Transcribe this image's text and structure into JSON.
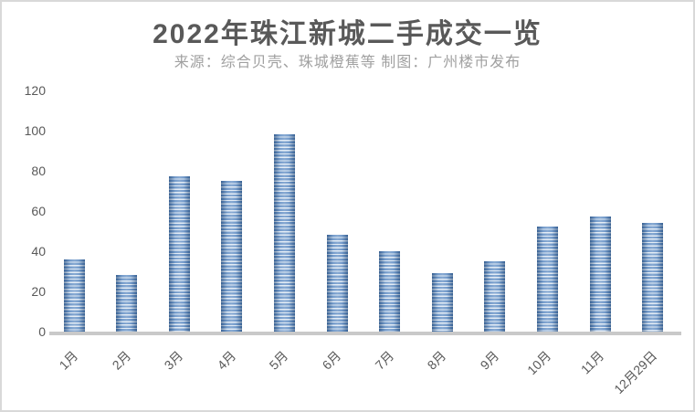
{
  "header": {
    "title": "2022年珠江新城二手成交一览",
    "subtitle": "来源：综合贝壳、珠城橙蕉等 制图：广州楼市发布"
  },
  "chart_data": {
    "type": "bar",
    "title": "2022年珠江新城二手成交一览",
    "subtitle": "来源：综合贝壳、珠城橙蕉等 制图：广州楼市发布",
    "categories": [
      "1月",
      "2月",
      "3月",
      "4月",
      "5月",
      "6月",
      "7月",
      "8月",
      "9月",
      "10月",
      "11月",
      "12月29日"
    ],
    "values": [
      36,
      28,
      77,
      75,
      98,
      48,
      40,
      29,
      35,
      52,
      57,
      54
    ],
    "xlabel": "",
    "ylabel": "",
    "ylim": [
      0,
      120
    ],
    "yticks": [
      0,
      20,
      40,
      60,
      80,
      100,
      120
    ],
    "grid": false,
    "legend_position": "none",
    "colors": {
      "bar_fill": "#4f81bd",
      "bar_stripe": "#d9e5f2",
      "bar_edge_shade": "rgba(28,58,96,0.45)",
      "axis_line": "#c9c9c9",
      "tick_label": "#595959",
      "title_text": "#595959",
      "subtitle_text": "#a0a0a0",
      "frame_border": "#d9d9d9"
    }
  }
}
